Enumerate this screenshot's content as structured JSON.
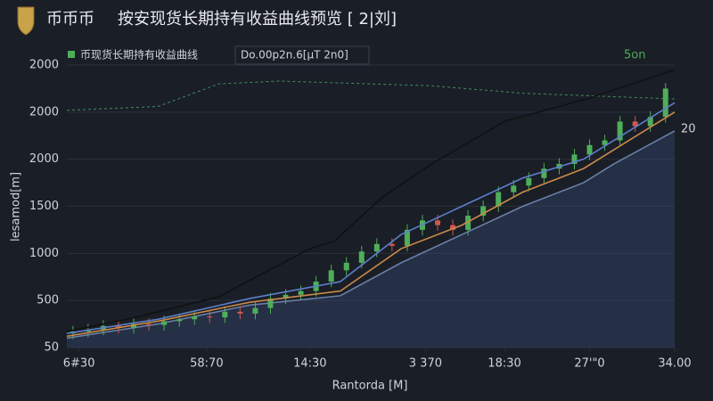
{
  "chart_data": {
    "type": "candlestick",
    "brand": "币币币",
    "title": "按安现货长期持有收益曲线预览 [ 2|刘]",
    "legend_note": "Do.00p2n.6[µT 2n0]",
    "annotations": [
      "5on",
      "20"
    ],
    "xlabel": "Rantorda [M]",
    "ylabel": "lesamod[m]",
    "xlim": [
      0,
      100
    ],
    "ylim": [
      0,
      3000
    ],
    "xticks": [
      {
        "value": 2,
        "label": "6#30"
      },
      {
        "value": 23,
        "label": "58:70"
      },
      {
        "value": 40,
        "label": "14:30"
      },
      {
        "value": 59,
        "label": "3 370"
      },
      {
        "value": 72,
        "label": "18:30"
      },
      {
        "value": 86,
        "label": "27'\"0"
      },
      {
        "value": 100,
        "label": "34.00"
      }
    ],
    "yticks": [
      {
        "value": 0,
        "label": "50"
      },
      500,
      1000,
      1500,
      2000,
      {
        "value": 2500,
        "label": "2000"
      },
      {
        "value": 3000,
        "label": "2000"
      }
    ],
    "up_color": "#4fae5a",
    "down_color": "#d0574e",
    "x": [
      1,
      3.5,
      6,
      8.5,
      11,
      13.5,
      16,
      18.5,
      21,
      23.5,
      26,
      28.5,
      31,
      33.5,
      36,
      38.5,
      41,
      43.5,
      46,
      48.5,
      51,
      53.5,
      56,
      58.5,
      61,
      63.5,
      66,
      68.5,
      71,
      73.5,
      76,
      78.5,
      81,
      83.5,
      86,
      88.5,
      91,
      93.5,
      96,
      98.5
    ],
    "open": [
      150,
      170,
      190,
      230,
      210,
      250,
      240,
      280,
      300,
      330,
      320,
      380,
      360,
      420,
      520,
      560,
      600,
      700,
      820,
      900,
      1020,
      1100,
      1080,
      1250,
      1350,
      1300,
      1250,
      1400,
      1500,
      1650,
      1720,
      1800,
      1900,
      1950,
      2050,
      2150,
      2200,
      2400,
      2350,
      2450
    ],
    "close": [
      170,
      190,
      230,
      210,
      250,
      240,
      280,
      300,
      330,
      320,
      380,
      360,
      420,
      520,
      560,
      600,
      700,
      820,
      900,
      1020,
      1100,
      1080,
      1250,
      1350,
      1300,
      1250,
      1400,
      1500,
      1650,
      1720,
      1800,
      1900,
      1950,
      2050,
      2150,
      2200,
      2400,
      2350,
      2450,
      2750
    ],
    "high": [
      230,
      250,
      290,
      290,
      310,
      310,
      340,
      360,
      390,
      390,
      440,
      440,
      480,
      580,
      620,
      660,
      760,
      880,
      960,
      1080,
      1160,
      1160,
      1310,
      1410,
      1410,
      1360,
      1460,
      1560,
      1710,
      1780,
      1860,
      1960,
      2010,
      2110,
      2210,
      2260,
      2460,
      2460,
      2510,
      2810
    ],
    "low": [
      90,
      110,
      130,
      150,
      150,
      180,
      180,
      220,
      240,
      260,
      260,
      300,
      300,
      360,
      460,
      500,
      540,
      640,
      760,
      840,
      960,
      1020,
      1020,
      1190,
      1240,
      1190,
      1190,
      1340,
      1440,
      1590,
      1660,
      1740,
      1840,
      1890,
      1990,
      2090,
      2140,
      2290,
      2290,
      2390
    ],
    "series": [
      {
        "name": "币现货长期持有收益曲线",
        "color": "#3f8f5c",
        "dash": true,
        "x": [
          0,
          15,
          25,
          35,
          50,
          60,
          75,
          100
        ],
        "values": [
          2520,
          2560,
          2800,
          2830,
          2800,
          2780,
          2700,
          2640
        ]
      },
      {
        "color": "#111111",
        "x": [
          0,
          12,
          25,
          40,
          44,
          52,
          60,
          72,
          86,
          100
        ],
        "values": [
          170,
          330,
          540,
          1050,
          1130,
          1600,
          1950,
          2400,
          2650,
          2950
        ]
      },
      {
        "color": "#5b7fc9",
        "x": [
          0,
          15,
          30,
          45,
          55,
          65,
          75,
          85,
          90,
          100
        ],
        "values": [
          150,
          300,
          520,
          700,
          1200,
          1500,
          1800,
          2000,
          2200,
          2600
        ]
      },
      {
        "color": "#c98a4a",
        "x": [
          0,
          15,
          30,
          45,
          55,
          65,
          75,
          85,
          90,
          100
        ],
        "values": [
          120,
          280,
          480,
          600,
          1050,
          1300,
          1650,
          1900,
          2100,
          2500
        ]
      },
      {
        "color": "#6a7fa8",
        "area": true,
        "x": [
          0,
          15,
          30,
          45,
          55,
          65,
          75,
          85,
          90,
          100
        ],
        "values": [
          100,
          250,
          450,
          550,
          900,
          1200,
          1500,
          1750,
          1950,
          2300
        ]
      }
    ]
  }
}
